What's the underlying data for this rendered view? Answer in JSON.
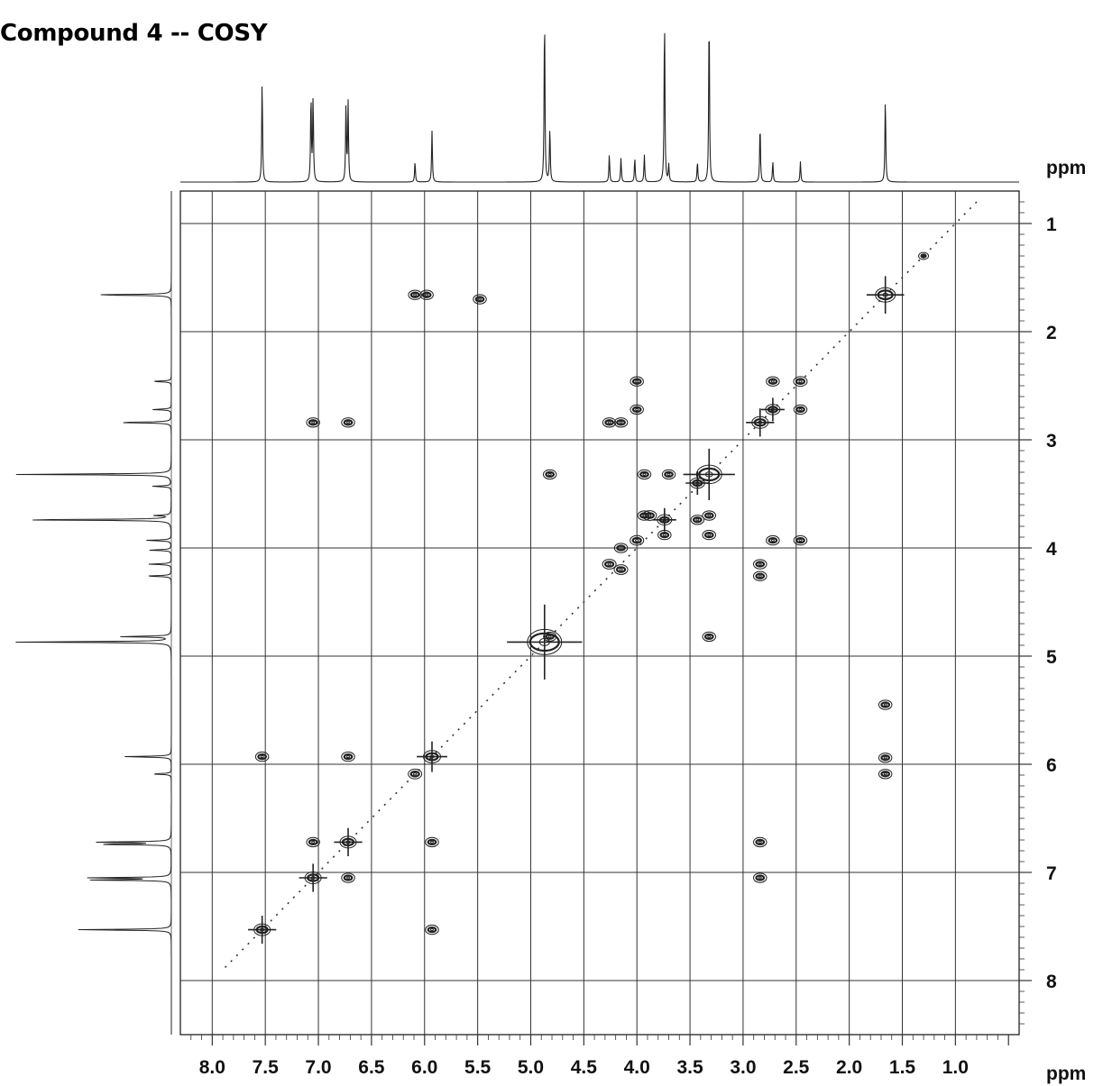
{
  "title": "Compound  4 -- COSY",
  "chart_data": {
    "type": "heatmap",
    "title": "Compound  4 -- COSY",
    "x_unit_label": "ppm",
    "y_unit_label": "ppm",
    "x_axis": {
      "range": [
        8.3,
        0.4
      ],
      "reversed": true,
      "ticks": [
        "8.0",
        "7.5",
        "7.0",
        "6.5",
        "6.0",
        "5.5",
        "5.0",
        "4.5",
        "4.0",
        "3.5",
        "3.0",
        "2.5",
        "2.0",
        "1.5",
        "1.0"
      ]
    },
    "y_axis": {
      "range": [
        0.7,
        8.5
      ],
      "ticks": [
        "1",
        "2",
        "3",
        "4",
        "5",
        "6",
        "7",
        "8"
      ]
    },
    "grid": true,
    "diagonal": [
      0.8,
      7.9
    ],
    "projection_peaks_ppm": [
      {
        "ppm": 7.53,
        "height": 0.6
      },
      {
        "ppm": 7.07,
        "height": 0.5
      },
      {
        "ppm": 7.05,
        "height": 0.5
      },
      {
        "ppm": 6.74,
        "height": 0.46
      },
      {
        "ppm": 6.72,
        "height": 0.46
      },
      {
        "ppm": 6.09,
        "height": 0.12
      },
      {
        "ppm": 5.93,
        "height": 0.3
      },
      {
        "ppm": 4.87,
        "height": 1.0
      },
      {
        "ppm": 4.82,
        "height": 0.32
      },
      {
        "ppm": 4.26,
        "height": 0.16
      },
      {
        "ppm": 4.15,
        "height": 0.14
      },
      {
        "ppm": 4.02,
        "height": 0.14
      },
      {
        "ppm": 3.93,
        "height": 0.16
      },
      {
        "ppm": 3.74,
        "height": 0.98
      },
      {
        "ppm": 3.7,
        "height": 0.1
      },
      {
        "ppm": 3.43,
        "height": 0.12
      },
      {
        "ppm": 3.32,
        "height": 1.0
      },
      {
        "ppm": 2.84,
        "height": 0.34
      },
      {
        "ppm": 2.72,
        "height": 0.12
      },
      {
        "ppm": 2.46,
        "height": 0.12
      },
      {
        "ppm": 1.66,
        "height": 0.5
      }
    ],
    "diagonal_peaks": [
      {
        "x": 7.53,
        "y": 7.53,
        "size": 1.2
      },
      {
        "x": 7.05,
        "y": 7.05,
        "size": 1.2
      },
      {
        "x": 6.72,
        "y": 6.72,
        "size": 1.2
      },
      {
        "x": 6.09,
        "y": 6.09,
        "size": 0.9
      },
      {
        "x": 5.93,
        "y": 5.93,
        "size": 1.3
      },
      {
        "x": 4.87,
        "y": 4.87,
        "size": 3.2
      },
      {
        "x": 4.82,
        "y": 4.82,
        "size": 0.8
      },
      {
        "x": 4.26,
        "y": 4.15,
        "size": 0.9
      },
      {
        "x": 4.15,
        "y": 4.2,
        "size": 0.9
      },
      {
        "x": 4.0,
        "y": 3.93,
        "size": 0.9
      },
      {
        "x": 3.88,
        "y": 3.7,
        "size": 0.9
      },
      {
        "x": 3.74,
        "y": 3.74,
        "size": 1.0
      },
      {
        "x": 3.43,
        "y": 3.4,
        "size": 1.0
      },
      {
        "x": 3.32,
        "y": 3.32,
        "size": 2.2
      },
      {
        "x": 2.84,
        "y": 2.84,
        "size": 1.2
      },
      {
        "x": 2.72,
        "y": 2.72,
        "size": 1.0
      },
      {
        "x": 2.46,
        "y": 2.46,
        "size": 0.9
      },
      {
        "x": 1.66,
        "y": 1.66,
        "size": 1.6
      },
      {
        "x": 1.3,
        "y": 1.3,
        "size": 0.5
      }
    ],
    "cross_peaks": [
      {
        "x": 6.09,
        "y": 1.66
      },
      {
        "x": 5.98,
        "y": 1.66
      },
      {
        "x": 5.48,
        "y": 1.7
      },
      {
        "x": 1.66,
        "y": 6.09
      },
      {
        "x": 1.66,
        "y": 5.94
      },
      {
        "x": 1.66,
        "y": 5.45
      },
      {
        "x": 7.05,
        "y": 6.72
      },
      {
        "x": 6.72,
        "y": 7.05
      },
      {
        "x": 7.05,
        "y": 2.84
      },
      {
        "x": 6.72,
        "y": 2.84
      },
      {
        "x": 2.84,
        "y": 6.72
      },
      {
        "x": 2.84,
        "y": 7.05
      },
      {
        "x": 7.53,
        "y": 5.93
      },
      {
        "x": 5.93,
        "y": 7.53
      },
      {
        "x": 6.72,
        "y": 5.93
      },
      {
        "x": 5.93,
        "y": 6.72
      },
      {
        "x": 4.82,
        "y": 3.32
      },
      {
        "x": 3.32,
        "y": 4.82
      },
      {
        "x": 4.26,
        "y": 2.84
      },
      {
        "x": 4.15,
        "y": 2.84
      },
      {
        "x": 2.84,
        "y": 4.15
      },
      {
        "x": 2.84,
        "y": 4.26
      },
      {
        "x": 4.0,
        "y": 2.46
      },
      {
        "x": 4.0,
        "y": 2.72
      },
      {
        "x": 2.46,
        "y": 3.93
      },
      {
        "x": 2.72,
        "y": 3.93
      },
      {
        "x": 2.72,
        "y": 2.46
      },
      {
        "x": 2.46,
        "y": 2.72
      },
      {
        "x": 3.93,
        "y": 3.32
      },
      {
        "x": 3.7,
        "y": 3.32
      },
      {
        "x": 3.32,
        "y": 3.7
      },
      {
        "x": 3.32,
        "y": 3.88
      },
      {
        "x": 3.93,
        "y": 3.7
      },
      {
        "x": 3.74,
        "y": 3.88
      },
      {
        "x": 3.43,
        "y": 3.74
      },
      {
        "x": 4.15,
        "y": 4.0
      }
    ]
  }
}
